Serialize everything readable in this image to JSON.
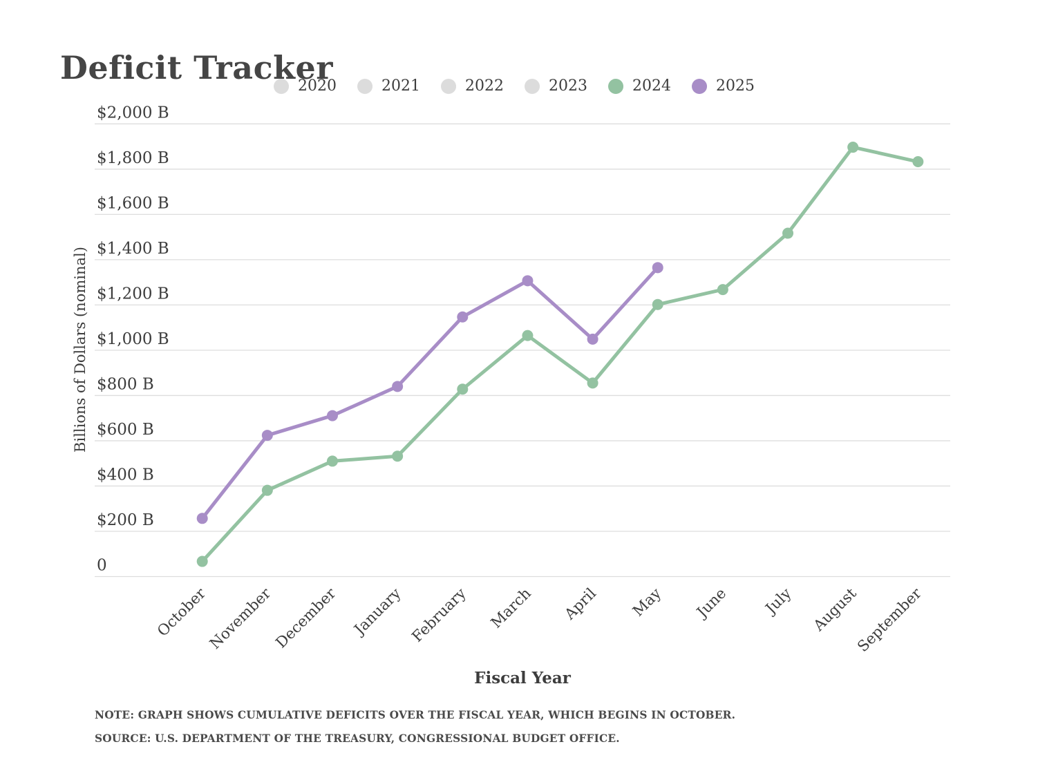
{
  "page": {
    "title": "Deficit Tracker"
  },
  "chart_data": {
    "type": "line",
    "title": "Deficit Tracker",
    "xlabel": "Fiscal Year",
    "ylabel": "Billions of Dollars (nominal)",
    "categories": [
      "October",
      "November",
      "December",
      "January",
      "February",
      "March",
      "April",
      "May",
      "June",
      "July",
      "August",
      "September"
    ],
    "series": [
      {
        "name": "2020",
        "color": "#dcdcdc",
        "active": false,
        "values": []
      },
      {
        "name": "2021",
        "color": "#dcdcdc",
        "active": false,
        "values": []
      },
      {
        "name": "2022",
        "color": "#dcdcdc",
        "active": false,
        "values": []
      },
      {
        "name": "2023",
        "color": "#dcdcdc",
        "active": false,
        "values": []
      },
      {
        "name": "2024",
        "color": "#93c2a1",
        "active": true,
        "values": [
          67,
          381,
          510,
          532,
          828,
          1065,
          855,
          1202,
          1268,
          1517,
          1897,
          1833
        ]
      },
      {
        "name": "2025",
        "color": "#a88dc7",
        "active": true,
        "values": [
          257,
          624,
          711,
          840,
          1147,
          1307,
          1049,
          1365
        ]
      }
    ],
    "ylim": [
      0,
      2000
    ],
    "yticks": [
      {
        "value": 2000,
        "label": "$2,000 B"
      },
      {
        "value": 1800,
        "label": "$1,800 B"
      },
      {
        "value": 1600,
        "label": "$1,600 B"
      },
      {
        "value": 1400,
        "label": "$1,400 B"
      },
      {
        "value": 1200,
        "label": "$1,200 B"
      },
      {
        "value": 1000,
        "label": "$1,000 B"
      },
      {
        "value": 800,
        "label": "$800 B"
      },
      {
        "value": 600,
        "label": "$600 B"
      },
      {
        "value": 400,
        "label": "$400 B"
      },
      {
        "value": 200,
        "label": "$200 B"
      },
      {
        "value": 0,
        "label": "0"
      }
    ],
    "grid": true,
    "legend_position": "top",
    "style": {
      "gridline_color": "#dddddd",
      "text_color": "#3d3d3d",
      "title_color": "#454545"
    }
  },
  "notes": {
    "note_line": "NOTE: GRAPH SHOWS CUMULATIVE DEFICITS OVER THE FISCAL YEAR, WHICH BEGINS IN OCTOBER.",
    "source_line": "SOURCE: U.S. DEPARTMENT OF THE TREASURY, CONGRESSIONAL BUDGET OFFICE."
  }
}
